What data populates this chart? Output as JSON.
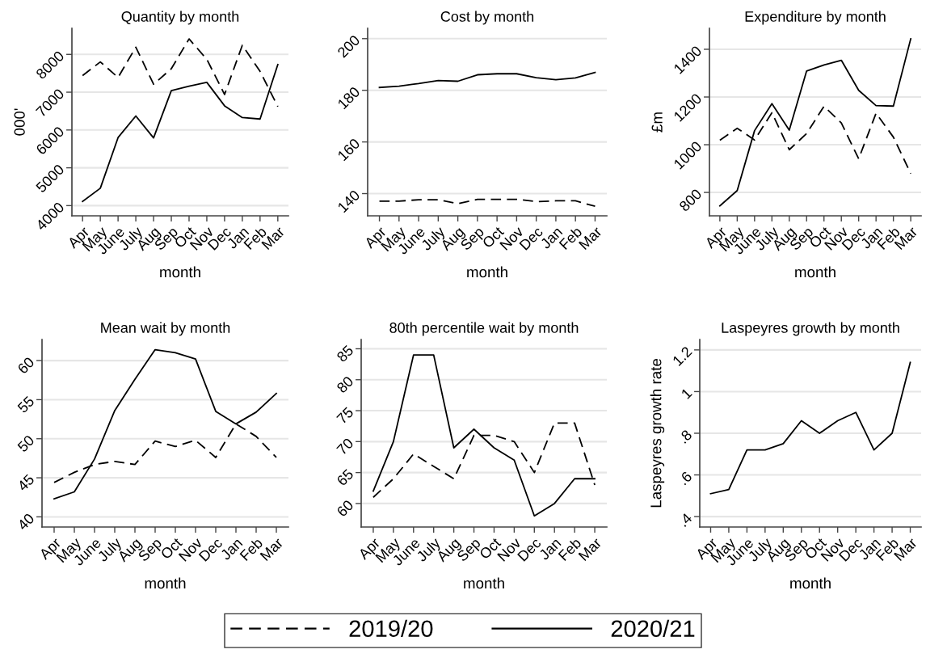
{
  "chart_data": [
    {
      "type": "line",
      "title": "Quantity by month",
      "xlabel": "month",
      "ylabel": "000'",
      "categories": [
        "Apr",
        "May",
        "June",
        "July",
        "Aug",
        "Sep",
        "Oct",
        "Nov",
        "Dec",
        "Jan",
        "Feb",
        "Mar"
      ],
      "series": [
        {
          "name": "2019/20",
          "color": "#000000",
          "line_style": "dashed",
          "values": [
            7440,
            7800,
            7390,
            8190,
            7210,
            7620,
            8410,
            7870,
            6940,
            8240,
            7550,
            6620
          ]
        },
        {
          "name": "2020/21",
          "color": "#000000",
          "line_style": "solid",
          "values": [
            4110,
            4460,
            5800,
            6370,
            5790,
            7040,
            7160,
            7260,
            6640,
            6330,
            6290,
            7730
          ]
        }
      ],
      "ylim": [
        3730,
        8690
      ],
      "yticks": [
        4000,
        5000,
        6000,
        7000,
        8000
      ],
      "grid": "y",
      "legend": "bottom"
    },
    {
      "type": "line",
      "title": "Cost by month",
      "xlabel": "month",
      "categories": [
        "Apr",
        "May",
        "June",
        "July",
        "Aug",
        "Sep",
        "Oct",
        "Nov",
        "Dec",
        "Jan",
        "Feb",
        "Mar"
      ],
      "series": [
        {
          "name": "2019/20",
          "color": "#000000",
          "line_style": "dashed",
          "values": [
            137.1,
            137.1,
            137.6,
            137.6,
            136.1,
            137.8,
            137.8,
            137.8,
            136.9,
            137.2,
            137.2,
            135.1
          ]
        },
        {
          "name": "2020/21",
          "color": "#000000",
          "line_style": "solid",
          "values": [
            181.1,
            181.6,
            182.6,
            183.8,
            183.5,
            186.0,
            186.4,
            186.4,
            184.9,
            184.1,
            184.8,
            186.9
          ]
        }
      ],
      "ylim": [
        131.4,
        204
      ],
      "yticks": [
        140,
        160,
        180,
        200
      ],
      "grid": "y"
    },
    {
      "type": "line",
      "title": "Expenditure by month",
      "xlabel": "month",
      "ylabel": "£m",
      "categories": [
        "Apr",
        "May",
        "June",
        "July",
        "Aug",
        "Sep",
        "Oct",
        "Nov",
        "Dec",
        "Jan",
        "Feb",
        "Mar"
      ],
      "series": [
        {
          "name": "2019/20",
          "color": "#000000",
          "line_style": "dashed",
          "values": [
            1019,
            1069,
            1020,
            1134,
            979,
            1047,
            1161,
            1091,
            941,
            1132,
            1032,
            879
          ]
        },
        {
          "name": "2020/21",
          "color": "#000000",
          "line_style": "solid",
          "values": [
            744,
            808,
            1059,
            1172,
            1061,
            1309,
            1334,
            1354,
            1228,
            1164,
            1162,
            1444
          ]
        }
      ],
      "ylim": [
        702,
        1488
      ],
      "yticks": [
        800,
        1000,
        1200,
        1400
      ],
      "grid": "y"
    },
    {
      "type": "line",
      "title": "Mean wait by month",
      "xlabel": "month",
      "categories": [
        "Apr",
        "May",
        "June",
        "July",
        "Aug",
        "Sep",
        "Oct",
        "Nov",
        "Dec",
        "Jan",
        "Feb",
        "Mar"
      ],
      "series": [
        {
          "name": "2019/20",
          "color": "#000000",
          "line_style": "dashed",
          "values": [
            44.4,
            45.7,
            46.7,
            47.1,
            46.7,
            49.7,
            49.0,
            49.8,
            47.6,
            51.9,
            50.3,
            47.6
          ]
        },
        {
          "name": "2020/21",
          "color": "#000000",
          "line_style": "solid",
          "values": [
            42.3,
            43.2,
            47.4,
            53.6,
            57.6,
            61.4,
            61.0,
            60.2,
            53.5,
            51.9,
            53.4,
            55.8
          ]
        }
      ],
      "ylim": [
        38.7,
        62.7
      ],
      "yticks": [
        40,
        45,
        50,
        55,
        60
      ],
      "grid": "y"
    },
    {
      "type": "line",
      "title": "80th percentile wait by month",
      "xlabel": "month",
      "categories": [
        "Apr",
        "May",
        "June",
        "July",
        "Aug",
        "Sep",
        "Oct",
        "Nov",
        "Dec",
        "Jan",
        "Feb",
        "Mar"
      ],
      "series": [
        {
          "name": "2019/20",
          "color": "#000000",
          "line_style": "dashed",
          "values": [
            61,
            64,
            68,
            66,
            64,
            71,
            71,
            70,
            65,
            73,
            73,
            63
          ]
        },
        {
          "name": "2020/21",
          "color": "#000000",
          "line_style": "solid",
          "values": [
            62,
            70,
            84,
            84,
            69,
            72,
            69,
            67,
            58,
            60,
            64,
            64
          ]
        }
      ],
      "ylim": [
        56.2,
        86.5
      ],
      "yticks": [
        60,
        65,
        70,
        75,
        80,
        85
      ],
      "grid": "y"
    },
    {
      "type": "line",
      "title": "Laspeyres growth by month",
      "xlabel": "month",
      "ylabel": "Laspeyres growth rate",
      "categories": [
        "Apr",
        "May",
        "June",
        "July",
        "Aug",
        "Sep",
        "Oct",
        "Nov",
        "Dec",
        "Jan",
        "Feb",
        "Mar"
      ],
      "series": [
        {
          "color": "#000000",
          "line_style": "solid",
          "values": [
            0.51,
            0.53,
            0.72,
            0.72,
            0.75,
            0.86,
            0.8,
            0.86,
            0.9,
            0.72,
            0.8,
            1.14
          ]
        }
      ],
      "ylim": [
        0.35,
        1.25
      ],
      "yticks": [
        {
          "value": 0.4,
          "label": ".4"
        },
        {
          "value": 0.6,
          "label": ".6"
        },
        {
          "value": 0.8,
          "label": ".8"
        },
        1,
        1.2
      ],
      "grid": "y"
    }
  ]
}
